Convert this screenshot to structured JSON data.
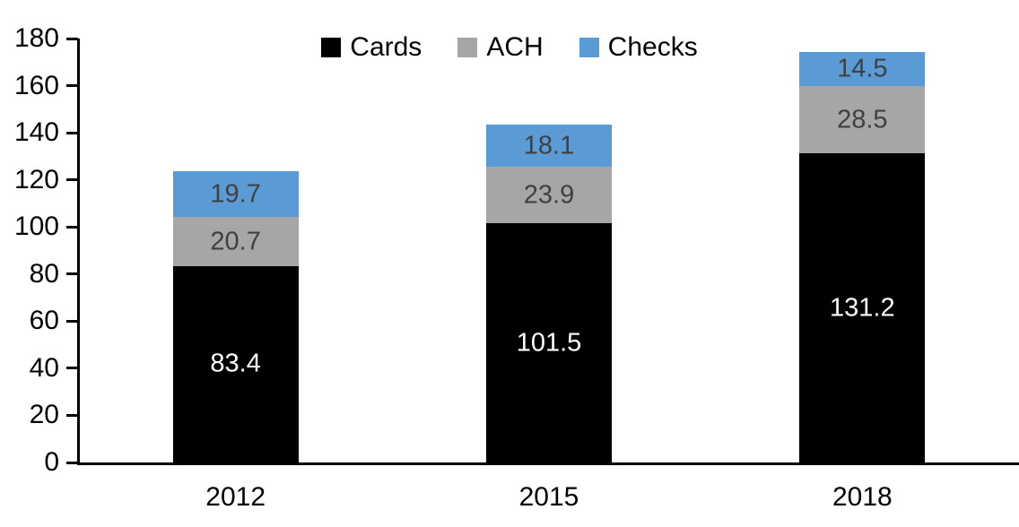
{
  "chart_data": {
    "type": "bar",
    "stacked": true,
    "title": "",
    "xlabel": "",
    "ylabel": "",
    "categories": [
      "2012",
      "2015",
      "2018"
    ],
    "series": [
      {
        "name": "Cards",
        "color": "#000000",
        "label_color": "#ffffff",
        "values": [
          83.4,
          101.5,
          131.2
        ]
      },
      {
        "name": "ACH",
        "color": "#A6A6A6",
        "label_color": "#404040",
        "values": [
          20.7,
          23.9,
          28.5
        ]
      },
      {
        "name": "Checks",
        "color": "#5B9BD5",
        "label_color": "#404040",
        "values": [
          19.7,
          18.1,
          14.5
        ]
      }
    ],
    "totals": [
      123.8,
      143.5,
      174.2
    ],
    "ylim": [
      0,
      180
    ],
    "ytick_step": 20,
    "ytick_labels": [
      "0",
      "20",
      "40",
      "60",
      "80",
      "100",
      "120",
      "140",
      "160",
      "180"
    ],
    "grid": false,
    "legend_position": "top-center",
    "axis_color": "#000000",
    "background_color": "#ffffff"
  }
}
